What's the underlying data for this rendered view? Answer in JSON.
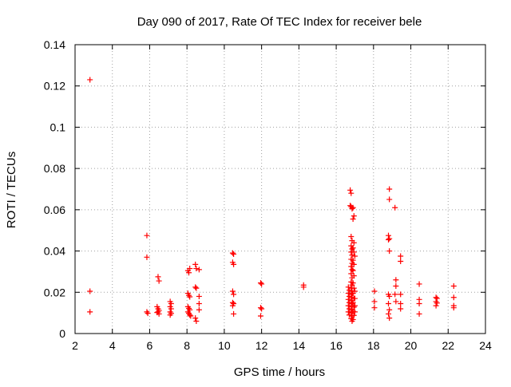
{
  "chart_data": {
    "type": "scatter",
    "title": "Day 090 of 2017, Rate Of TEC Index for receiver bele",
    "xlabel": "GPS time / hours",
    "ylabel": "ROTI / TECUs",
    "xlim": [
      2,
      24
    ],
    "ylim": [
      0,
      0.14
    ],
    "xticks": [
      2,
      4,
      6,
      8,
      10,
      12,
      14,
      16,
      18,
      20,
      22,
      24
    ],
    "yticks": [
      0,
      0.02,
      0.04,
      0.06,
      0.08,
      0.1,
      0.12,
      0.14
    ],
    "xtick_labels": [
      "2",
      "4",
      "6",
      "8",
      "10",
      "12",
      "14",
      "16",
      "18",
      "20",
      "22",
      "24"
    ],
    "ytick_labels": [
      "0",
      "0.02",
      "0.04",
      "0.06",
      "0.08",
      "0.1",
      "0.12",
      "0.14"
    ],
    "grid": true,
    "marker": "plus",
    "color": "#ff0000",
    "points": [
      [
        2.8,
        0.123
      ],
      [
        2.8,
        0.0205
      ],
      [
        2.8,
        0.0105
      ],
      [
        5.85,
        0.0475
      ],
      [
        5.85,
        0.037
      ],
      [
        5.85,
        0.0105
      ],
      [
        5.9,
        0.0098
      ],
      [
        6.45,
        0.0275
      ],
      [
        6.5,
        0.0255
      ],
      [
        6.4,
        0.013
      ],
      [
        6.45,
        0.012
      ],
      [
        6.5,
        0.0112
      ],
      [
        6.4,
        0.0102
      ],
      [
        6.5,
        0.0095
      ],
      [
        6.45,
        0.0105
      ],
      [
        7.1,
        0.0155
      ],
      [
        7.15,
        0.0145
      ],
      [
        7.1,
        0.013
      ],
      [
        7.15,
        0.012
      ],
      [
        7.1,
        0.0105
      ],
      [
        7.15,
        0.0098
      ],
      [
        7.1,
        0.009
      ],
      [
        8.05,
        0.0305
      ],
      [
        8.1,
        0.0295
      ],
      [
        8.15,
        0.0315
      ],
      [
        8.05,
        0.0195
      ],
      [
        8.1,
        0.0185
      ],
      [
        8.15,
        0.0178
      ],
      [
        8.05,
        0.013
      ],
      [
        8.1,
        0.0122
      ],
      [
        8.15,
        0.0115
      ],
      [
        8.05,
        0.0105
      ],
      [
        8.1,
        0.0098
      ],
      [
        8.15,
        0.009
      ],
      [
        8.2,
        0.0085
      ],
      [
        8.45,
        0.0335
      ],
      [
        8.5,
        0.0315
      ],
      [
        8.45,
        0.0225
      ],
      [
        8.5,
        0.022
      ],
      [
        8.45,
        0.0075
      ],
      [
        8.5,
        0.006
      ],
      [
        8.65,
        0.031
      ],
      [
        8.65,
        0.018
      ],
      [
        8.65,
        0.0145
      ],
      [
        8.65,
        0.0115
      ],
      [
        10.45,
        0.039
      ],
      [
        10.5,
        0.0385
      ],
      [
        10.45,
        0.0345
      ],
      [
        10.5,
        0.0335
      ],
      [
        10.45,
        0.0205
      ],
      [
        10.5,
        0.019
      ],
      [
        10.45,
        0.015
      ],
      [
        10.5,
        0.0145
      ],
      [
        10.45,
        0.0135
      ],
      [
        10.5,
        0.0095
      ],
      [
        11.95,
        0.0245
      ],
      [
        12.0,
        0.024
      ],
      [
        11.95,
        0.0125
      ],
      [
        12.0,
        0.012
      ],
      [
        11.95,
        0.0085
      ],
      [
        14.25,
        0.0235
      ],
      [
        14.25,
        0.0225
      ],
      [
        16.65,
        0.0225
      ],
      [
        16.7,
        0.021
      ],
      [
        16.65,
        0.0195
      ],
      [
        16.7,
        0.018
      ],
      [
        16.65,
        0.0165
      ],
      [
        16.7,
        0.015
      ],
      [
        16.65,
        0.0135
      ],
      [
        16.7,
        0.012
      ],
      [
        16.65,
        0.0105
      ],
      [
        16.7,
        0.009
      ],
      [
        16.75,
        0.0695
      ],
      [
        16.8,
        0.068
      ],
      [
        16.75,
        0.062
      ],
      [
        16.8,
        0.0615
      ],
      [
        16.85,
        0.0605
      ],
      [
        16.8,
        0.047
      ],
      [
        16.85,
        0.045
      ],
      [
        16.8,
        0.0425
      ],
      [
        16.85,
        0.041
      ],
      [
        16.8,
        0.0395
      ],
      [
        16.85,
        0.038
      ],
      [
        16.8,
        0.036
      ],
      [
        16.85,
        0.034
      ],
      [
        16.8,
        0.0325
      ],
      [
        16.85,
        0.031
      ],
      [
        16.8,
        0.029
      ],
      [
        16.85,
        0.027
      ],
      [
        16.8,
        0.025
      ],
      [
        16.85,
        0.0235
      ],
      [
        16.8,
        0.022
      ],
      [
        16.85,
        0.0205
      ],
      [
        16.8,
        0.019
      ],
      [
        16.85,
        0.0175
      ],
      [
        16.8,
        0.016
      ],
      [
        16.85,
        0.0145
      ],
      [
        16.8,
        0.013
      ],
      [
        16.85,
        0.0115
      ],
      [
        16.8,
        0.01
      ],
      [
        16.85,
        0.0085
      ],
      [
        16.8,
        0.0072
      ],
      [
        16.85,
        0.006
      ],
      [
        16.9,
        0.061
      ],
      [
        16.95,
        0.057
      ],
      [
        16.9,
        0.0555
      ],
      [
        16.95,
        0.044
      ],
      [
        16.9,
        0.0415
      ],
      [
        16.95,
        0.0395
      ],
      [
        16.9,
        0.0355
      ],
      [
        16.95,
        0.0335
      ],
      [
        16.9,
        0.0305
      ],
      [
        16.95,
        0.028
      ],
      [
        16.9,
        0.0245
      ],
      [
        16.95,
        0.022
      ],
      [
        16.9,
        0.0195
      ],
      [
        16.95,
        0.017
      ],
      [
        16.9,
        0.015
      ],
      [
        16.95,
        0.0128
      ],
      [
        16.9,
        0.0108
      ],
      [
        16.95,
        0.0088
      ],
      [
        16.9,
        0.0068
      ],
      [
        17.0,
        0.0375
      ],
      [
        17.0,
        0.0205
      ],
      [
        17.0,
        0.017
      ],
      [
        17.0,
        0.0135
      ],
      [
        17.0,
        0.0105
      ],
      [
        18.05,
        0.0205
      ],
      [
        18.05,
        0.0155
      ],
      [
        18.05,
        0.0125
      ],
      [
        18.85,
        0.07
      ],
      [
        18.85,
        0.065
      ],
      [
        18.8,
        0.0475
      ],
      [
        18.85,
        0.046
      ],
      [
        18.8,
        0.0455
      ],
      [
        18.85,
        0.04
      ],
      [
        18.8,
        0.019
      ],
      [
        18.85,
        0.018
      ],
      [
        18.8,
        0.0145
      ],
      [
        18.85,
        0.0115
      ],
      [
        18.8,
        0.0095
      ],
      [
        18.85,
        0.0075
      ],
      [
        19.15,
        0.061
      ],
      [
        19.2,
        0.026
      ],
      [
        19.2,
        0.023
      ],
      [
        19.15,
        0.019
      ],
      [
        19.2,
        0.0155
      ],
      [
        19.45,
        0.0375
      ],
      [
        19.45,
        0.035
      ],
      [
        19.45,
        0.019
      ],
      [
        19.45,
        0.0145
      ],
      [
        19.45,
        0.012
      ],
      [
        20.45,
        0.024
      ],
      [
        20.45,
        0.0165
      ],
      [
        20.45,
        0.0145
      ],
      [
        20.45,
        0.0095
      ],
      [
        21.35,
        0.0175
      ],
      [
        21.4,
        0.017
      ],
      [
        21.35,
        0.0155
      ],
      [
        21.4,
        0.0148
      ],
      [
        21.35,
        0.0135
      ],
      [
        22.3,
        0.023
      ],
      [
        22.3,
        0.0175
      ],
      [
        22.3,
        0.0135
      ],
      [
        22.3,
        0.0125
      ]
    ]
  }
}
